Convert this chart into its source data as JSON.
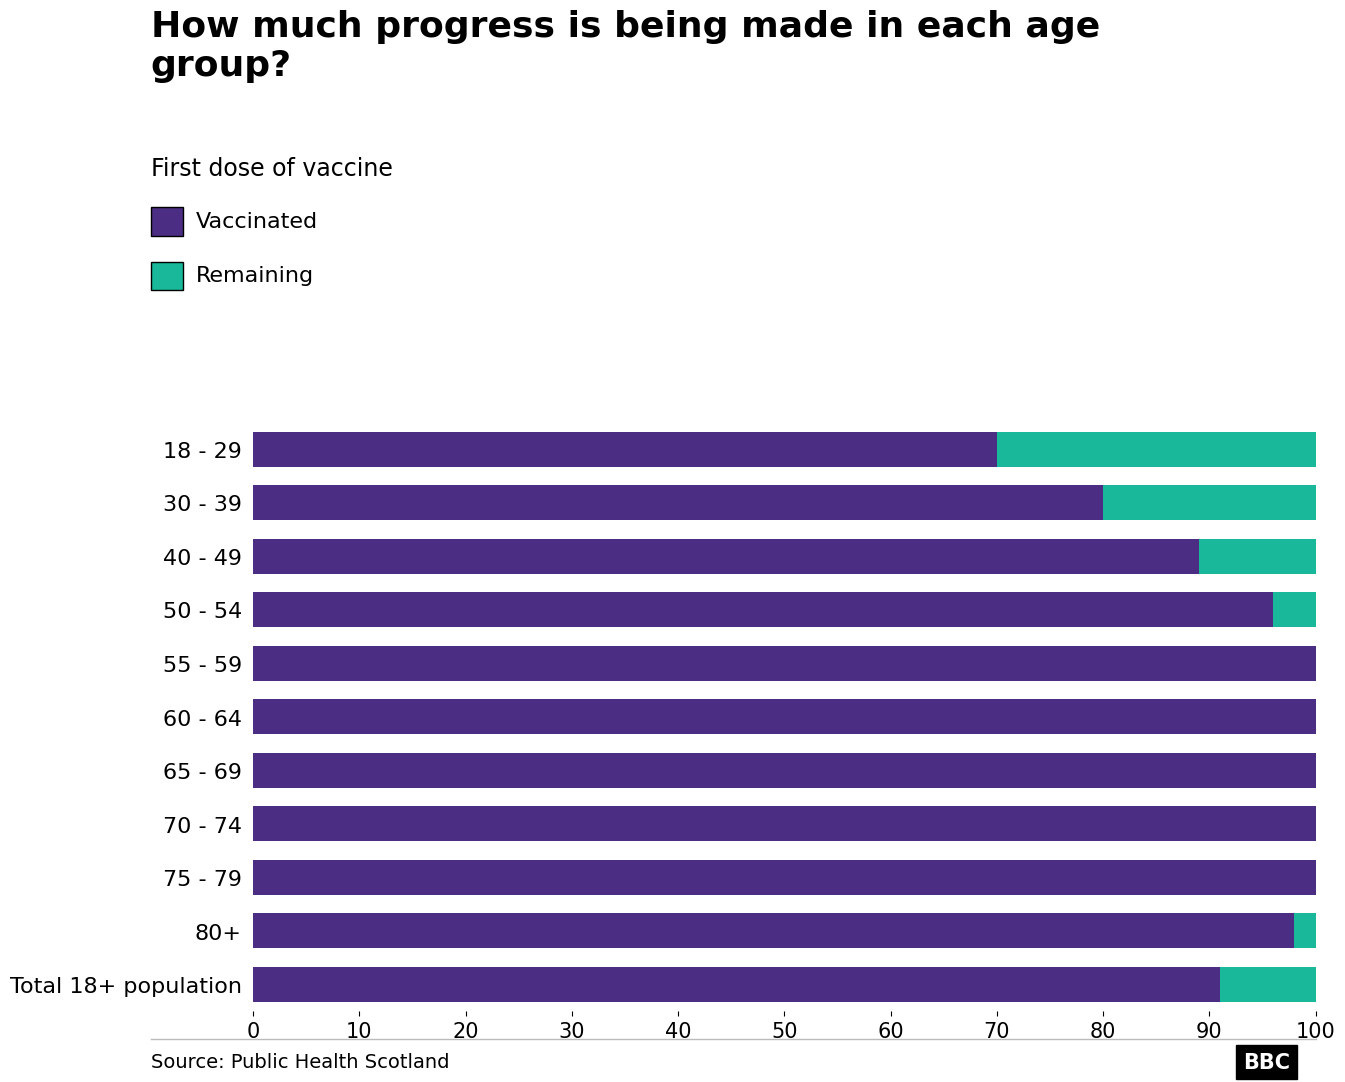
{
  "title": "How much progress is being made in each age\ngroup?",
  "subtitle": "First dose of vaccine",
  "categories": [
    "18 - 29",
    "30 - 39",
    "40 - 49",
    "50 - 54",
    "55 - 59",
    "60 - 64",
    "65 - 69",
    "70 - 74",
    "75 - 79",
    "80+",
    "Total 18+ population"
  ],
  "vaccinated": [
    70,
    80,
    89,
    96,
    100,
    100,
    100,
    100,
    100,
    98,
    91
  ],
  "remaining": [
    30,
    20,
    11,
    4,
    0,
    0,
    0,
    0,
    0,
    2,
    9
  ],
  "vaccinated_color": "#4b2e83",
  "remaining_color": "#1ab89a",
  "background_color": "#ffffff",
  "xlim": [
    0,
    100
  ],
  "xticks": [
    0,
    10,
    20,
    30,
    40,
    50,
    60,
    70,
    80,
    90,
    100
  ],
  "source_text": "Source: Public Health Scotland",
  "bbc_text": "BBC",
  "title_fontsize": 26,
  "subtitle_fontsize": 17,
  "legend_fontsize": 16,
  "tick_fontsize": 15,
  "label_fontsize": 16,
  "source_fontsize": 14
}
